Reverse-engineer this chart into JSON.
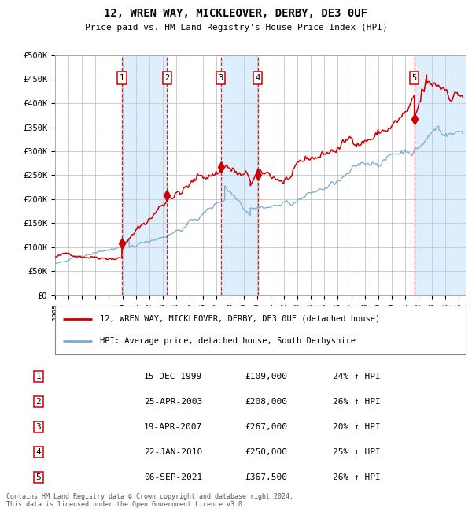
{
  "title": "12, WREN WAY, MICKLEOVER, DERBY, DE3 0UF",
  "subtitle": "Price paid vs. HM Land Registry's House Price Index (HPI)",
  "ylabel_ticks": [
    "£0",
    "£50K",
    "£100K",
    "£150K",
    "£200K",
    "£250K",
    "£300K",
    "£350K",
    "£400K",
    "£450K",
    "£500K"
  ],
  "ytick_values": [
    0,
    50000,
    100000,
    150000,
    200000,
    250000,
    300000,
    350000,
    400000,
    450000,
    500000
  ],
  "xmin": 1995.0,
  "xmax": 2025.5,
  "ymin": 0,
  "ymax": 500000,
  "transactions": [
    {
      "num": 1,
      "date": "15-DEC-1999",
      "year": 1999.96,
      "price": 109000,
      "pct": "24%",
      "dir": "↑"
    },
    {
      "num": 2,
      "date": "25-APR-2003",
      "year": 2003.32,
      "price": 208000,
      "pct": "26%",
      "dir": "↑"
    },
    {
      "num": 3,
      "date": "19-APR-2007",
      "year": 2007.3,
      "price": 267000,
      "pct": "20%",
      "dir": "↑"
    },
    {
      "num": 4,
      "date": "22-JAN-2010",
      "year": 2010.06,
      "price": 250000,
      "pct": "25%",
      "dir": "↑"
    },
    {
      "num": 5,
      "date": "06-SEP-2021",
      "year": 2021.68,
      "price": 367500,
      "pct": "26%",
      "dir": "↑"
    }
  ],
  "legend_line1": "12, WREN WAY, MICKLEOVER, DERBY, DE3 0UF (detached house)",
  "legend_line2": "HPI: Average price, detached house, South Derbyshire",
  "table_rows": [
    [
      "1",
      "15-DEC-1999",
      "£109,000",
      "24% ↑ HPI"
    ],
    [
      "2",
      "25-APR-2003",
      "£208,000",
      "26% ↑ HPI"
    ],
    [
      "3",
      "19-APR-2007",
      "£267,000",
      "20% ↑ HPI"
    ],
    [
      "4",
      "22-JAN-2010",
      "£250,000",
      "25% ↑ HPI"
    ],
    [
      "5",
      "06-SEP-2021",
      "£367,500",
      "26% ↑ HPI"
    ]
  ],
  "footnote": "Contains HM Land Registry data © Crown copyright and database right 2024.\nThis data is licensed under the Open Government Licence v3.0.",
  "red_color": "#cc0000",
  "blue_color": "#7aaacf",
  "shade_color": "#ddeeff",
  "grid_color": "#cccccc",
  "dashed_color": "#cc0000",
  "fig_width": 6.0,
  "fig_height": 6.5,
  "dpi": 100
}
